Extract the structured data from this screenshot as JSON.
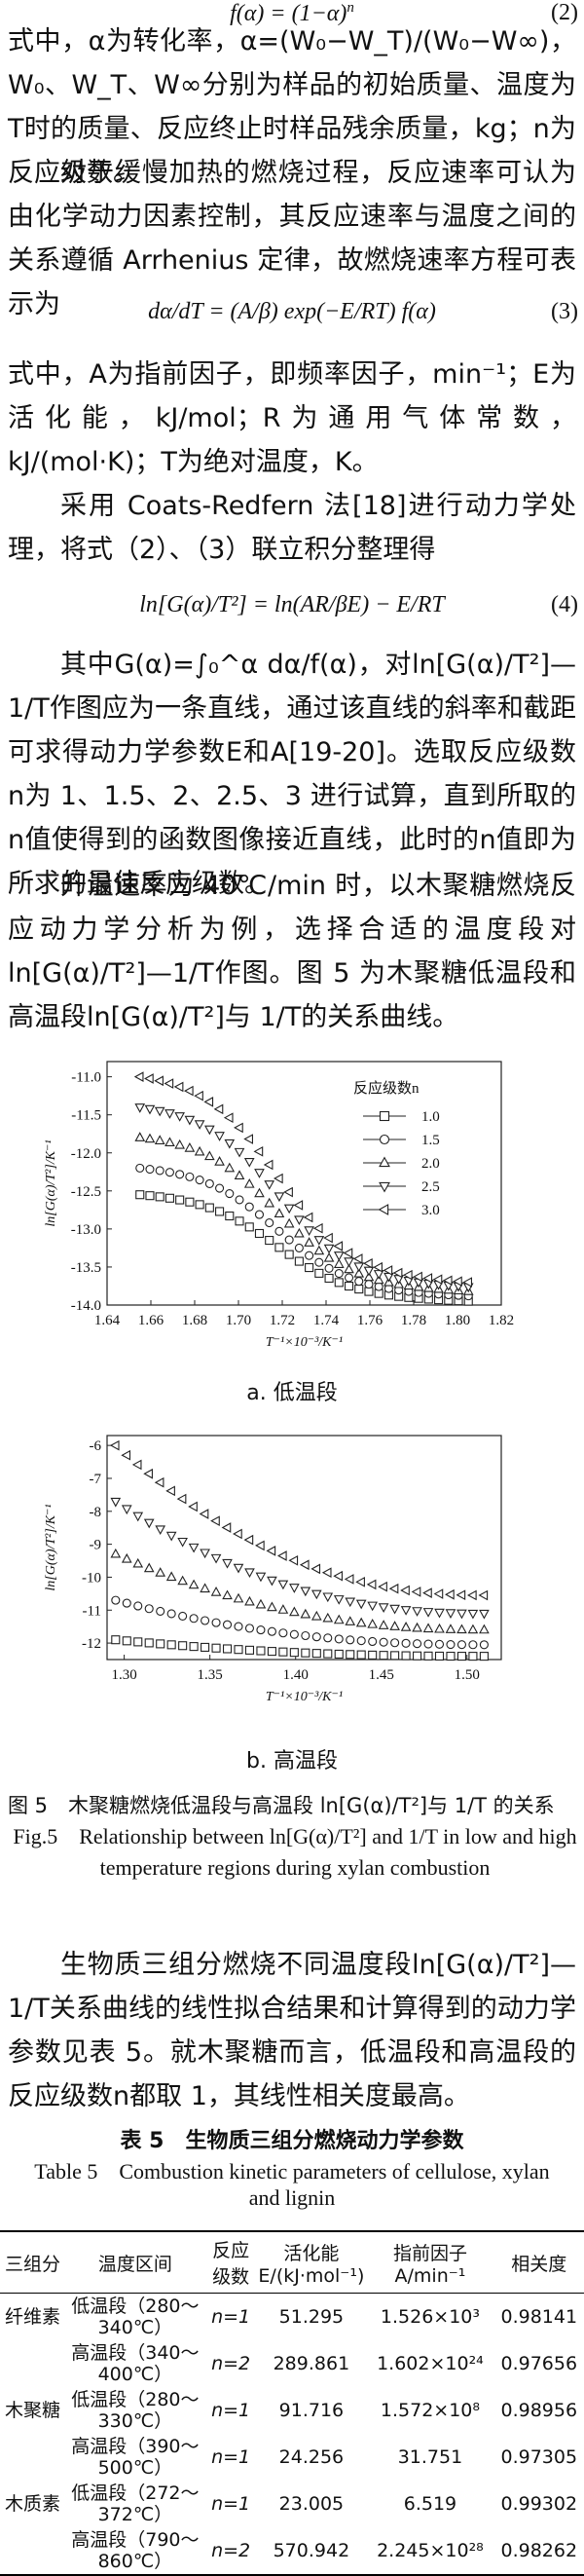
{
  "eq2": {
    "lhs": "f(α) = (1−α)",
    "sup": "n",
    "num": "(2)"
  },
  "p1": "式中，α为转化率，α=(W₀−W_T)/(W₀−W∞)，W₀、W_T、W∞分别为样品的初始质量、温度为T时的质量、反应终止时样品残余质量，kg；n为反应级数。",
  "p2": "对于缓慢加热的燃烧过程，反应速率可认为由化学动力因素控制，其反应速率与温度之间的关系遵循 Arrhenius 定律，故燃烧速率方程可表示为",
  "eq3": {
    "lhs": "dα/dT",
    "rhs": "= (A/β) exp(−E/RT) f(α)",
    "num": "(3)"
  },
  "p3": "式中，A为指前因子，即频率因子，min⁻¹；E为活化能，kJ/mol；R为通用气体常数，kJ/(mol·K)；T为绝对温度，K。",
  "p4": "采用 Coats-Redfern 法[18]进行动力学处理，将式（2）、（3）联立积分整理得",
  "eq4": {
    "text": "ln[G(α)/T²] = ln(AR/βE) − E/RT",
    "num": "(4)"
  },
  "p5": "其中G(α)=∫₀^α dα/f(α)，对ln[G(α)/T²]—1/T作图应为一条直线，通过该直线的斜率和截距可求得动力学参数E和A[19-20]。选取反应级数n为 1、1.5、2、2.5、3 进行试算，直到所取的n值使得到的函数图像接近直线，此时的n值即为所求的最佳反应级数。",
  "p6": "升温速率为 40℃/min 时，以木聚糖燃烧反应动力学分析为例，选择合适的温度段对ln[G(α)/T²]—1/T作图。图 5 为木聚糖低温段和高温段ln[G(α)/T²]与 1/T的关系曲线。",
  "chart_data": [
    {
      "type": "scatter",
      "subtitle": "a. 低温段",
      "xlabel": "T⁻¹×10⁻³/K⁻¹",
      "ylabel": "ln[G(α)/T²]/K⁻¹",
      "xlim": [
        1.64,
        1.82
      ],
      "ylim": [
        -14.0,
        -10.8
      ],
      "xticks": [
        "1.64",
        "1.66",
        "1.68",
        "1.70",
        "1.72",
        "1.74",
        "1.76",
        "1.78",
        "1.80",
        "1.82"
      ],
      "yticks": [
        "-11.0",
        "-11.5",
        "-12.0",
        "-12.5",
        "-13.0",
        "-13.5",
        "-14.0"
      ],
      "legend_title": "反应级数n",
      "legend_position": "right",
      "series": [
        {
          "name": "1.0",
          "marker": "square",
          "y_start": -12.55,
          "y_end": -13.95
        },
        {
          "name": "1.5",
          "marker": "circle",
          "y_start": -12.2,
          "y_end": -13.88
        },
        {
          "name": "2.0",
          "marker": "triangle-up",
          "y_start": -11.8,
          "y_end": -13.82
        },
        {
          "name": "2.5",
          "marker": "triangle-down",
          "y_start": -11.4,
          "y_end": -13.76
        },
        {
          "name": "3.0",
          "marker": "triangle-left",
          "y_start": -11.0,
          "y_end": -13.7
        }
      ],
      "x_range": [
        1.655,
        1.805
      ]
    },
    {
      "type": "scatter",
      "subtitle": "b. 高温段",
      "xlabel": "T⁻¹×10⁻³/K⁻¹",
      "ylabel": "ln[G(α)/T²]/K⁻¹",
      "xlim": [
        1.29,
        1.52
      ],
      "ylim": [
        -12.5,
        -5.7
      ],
      "xticks": [
        "1.30",
        "1.35",
        "1.40",
        "1.45",
        "1.50"
      ],
      "yticks": [
        "-6",
        "-7",
        "-8",
        "-9",
        "-10",
        "-11",
        "-12"
      ],
      "series": [
        {
          "name": "1.0",
          "marker": "square",
          "y_start": -11.9,
          "y_end": -12.4
        },
        {
          "name": "1.5",
          "marker": "circle",
          "y_start": -10.7,
          "y_end": -12.05
        },
        {
          "name": "2.0",
          "marker": "triangle-up",
          "y_start": -9.3,
          "y_end": -11.6
        },
        {
          "name": "2.5",
          "marker": "triangle-down",
          "y_start": -7.7,
          "y_end": -11.1
        },
        {
          "name": "3.0",
          "marker": "triangle-left",
          "y_start": -6.0,
          "y_end": -10.55
        }
      ],
      "x_range": [
        1.295,
        1.51
      ]
    }
  ],
  "fig5": {
    "cn": "图 5　木聚糖燃烧低温段与高温段 ln[G(α)/T²]与 1/T 的关系",
    "en": "Fig.5　Relationship between ln[G(α)/T²] and 1/T in low and high temperature regions during xylan combustion"
  },
  "p7": "生物质三组分燃烧不同温度段ln[G(α)/T²]—1/T关系曲线的线性拟合结果和计算得到的动力学参数见表 5。就木聚糖而言，低温段和高温段的反应级数n都取 1，其线性相关度最高。",
  "table5": {
    "title_cn": "表 5　生物质三组分燃烧动力学参数",
    "title_en": "Table 5　Combustion kinetic parameters of cellulose, xylan and lignin",
    "headers": [
      "三组分",
      "温度区间",
      "反应级数",
      "活化能 E/(kJ·mol⁻¹)",
      "指前因子 A/min⁻¹",
      "相关度"
    ],
    "rows": [
      {
        "comp": "纤维素",
        "range": "低温段（280～340℃）",
        "n": "n=1",
        "E": "51.295",
        "A": "1.526×10³",
        "r": "0.98141"
      },
      {
        "comp": "",
        "range": "高温段（340～400℃）",
        "n": "n=2",
        "E": "289.861",
        "A": "1.602×10²⁴",
        "r": "0.97656"
      },
      {
        "comp": "木聚糖",
        "range": "低温段（280～330℃）",
        "n": "n=1",
        "E": "91.716",
        "A": "1.572×10⁸",
        "r": "0.98956"
      },
      {
        "comp": "",
        "range": "高温段（390～500℃）",
        "n": "n=1",
        "E": "24.256",
        "A": "31.751",
        "r": "0.97305"
      },
      {
        "comp": "木质素",
        "range": "低温段（272～372℃）",
        "n": "n=1",
        "E": "23.005",
        "A": "6.519",
        "r": "0.99302"
      },
      {
        "comp": "",
        "range": "高温段（790～860℃）",
        "n": "n=2",
        "E": "570.942",
        "A": "2.245×10²⁸",
        "r": "0.98262"
      }
    ]
  }
}
